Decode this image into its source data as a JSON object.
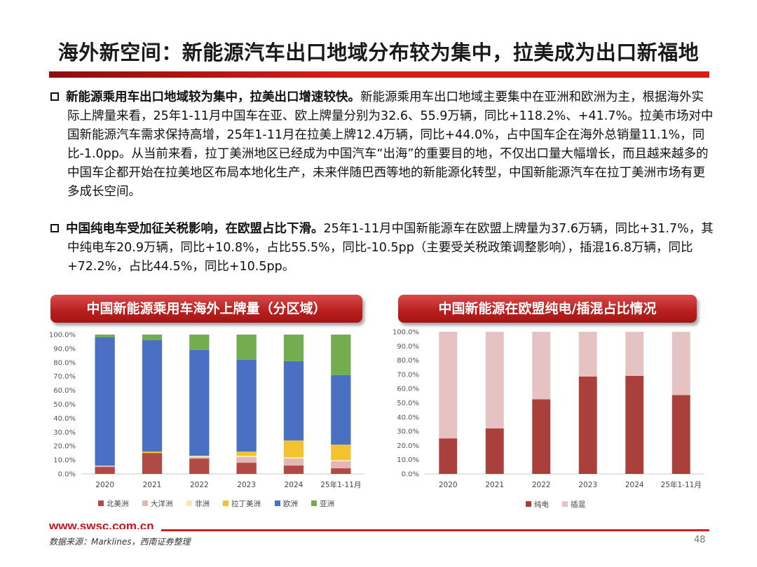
{
  "title": "海外新空间：新能源汽车出口地域分布较为集中，拉美成为出口新福地",
  "paragraphs": [
    {
      "lead": "新能源乘用车出口地域较为集中，拉美出口增速较快。",
      "body": "新能源乘用车出口地域主要集中在亚洲和欧洲为主，根据海外实际上牌量来看，25年1-11月中国车在亚、欧上牌量分别为32.6、55.9万辆，同比+118.2%、+41.7%。拉美市场对中国新能源汽车需求保持高增，25年1-11月在拉美上牌12.4万辆，同比+44.0%，占中国车企在海外总销量11.1%，同比-1.0pp。从当前来看，拉丁美洲地区已经成为中国汽车“出海”的重要目的地，不仅出口量大幅增长，而且越来越多的中国车企都开始在拉美地区布局本地化生产，未来伴随巴西等地的新能源化转型，中国新能源汽车在拉丁美洲市场有更多成长空间。"
    },
    {
      "lead": "中国纯电车受加征关税影响，在欧盟占比下滑。",
      "body": "25年1-11月中国新能源车在欧盟上牌量为37.6万辆，同比+31.7%，其中纯电车20.9万辆，同比+10.8%，占比55.5%，同比-10.5pp（主要受关税政策调整影响），插混16.8万辆，同比+72.2%，占比44.5%，同比+10.5pp。"
    }
  ],
  "chart_data": [
    {
      "type": "bar",
      "stacked": true,
      "title": "中国新能源乘用车海外上牌量（分区域）",
      "categories": [
        "2020",
        "2021",
        "2022",
        "2023",
        "2024",
        "25年1-11月"
      ],
      "y_ticks": [
        "0.0%",
        "10.0%",
        "20.0%",
        "30.0%",
        "40.0%",
        "50.0%",
        "60.0%",
        "70.0%",
        "80.0%",
        "90.0%",
        "100.0%"
      ],
      "ylim": [
        0,
        100
      ],
      "legend_position": "bottom",
      "series": [
        {
          "name": "北美洲",
          "color": "#b14a44",
          "values": [
            5.0,
            15.0,
            11.0,
            8.0,
            6.0,
            4.0
          ]
        },
        {
          "name": "大洋洲",
          "color": "#e3b7b5",
          "values": [
            1.0,
            0.0,
            1.0,
            4.0,
            5.0,
            5.0
          ]
        },
        {
          "name": "非洲",
          "color": "#f6e7b7",
          "values": [
            0.0,
            0.0,
            1.0,
            1.0,
            1.0,
            1.0
          ]
        },
        {
          "name": "拉丁美洲",
          "color": "#f5c22f",
          "values": [
            0.0,
            1.0,
            0.0,
            3.0,
            12.0,
            11.0
          ]
        },
        {
          "name": "欧洲",
          "color": "#4a70c4",
          "values": [
            92.0,
            80.0,
            76.0,
            66.0,
            57.0,
            50.0
          ]
        },
        {
          "name": "亚洲",
          "color": "#73ad4f",
          "values": [
            2.0,
            4.0,
            11.0,
            18.0,
            19.0,
            29.0
          ]
        }
      ]
    },
    {
      "type": "bar",
      "stacked": true,
      "title": "中国新能源在欧盟纯电/插混占比情况",
      "categories": [
        "2020",
        "2021",
        "2022",
        "2023",
        "2024",
        "25年1-11月"
      ],
      "y_ticks": [
        "0.0%",
        "10.0%",
        "20.0%",
        "30.0%",
        "40.0%",
        "50.0%",
        "60.0%",
        "70.0%",
        "80.0%",
        "90.0%",
        "100.0%"
      ],
      "ylim": [
        0,
        100
      ],
      "legend_position": "bottom",
      "series": [
        {
          "name": "纯电",
          "color": "#a9403c",
          "values": [
            25.0,
            32.0,
            52.5,
            68.5,
            69.0,
            55.5
          ]
        },
        {
          "name": "插混",
          "color": "#e5c3c2",
          "values": [
            75.0,
            68.0,
            47.5,
            31.5,
            31.0,
            44.5
          ]
        }
      ]
    }
  ],
  "footer": {
    "url": "www.swsc.com.cn",
    "source": "数据来源：Marklines，西南证券整理",
    "page_number": "48"
  }
}
